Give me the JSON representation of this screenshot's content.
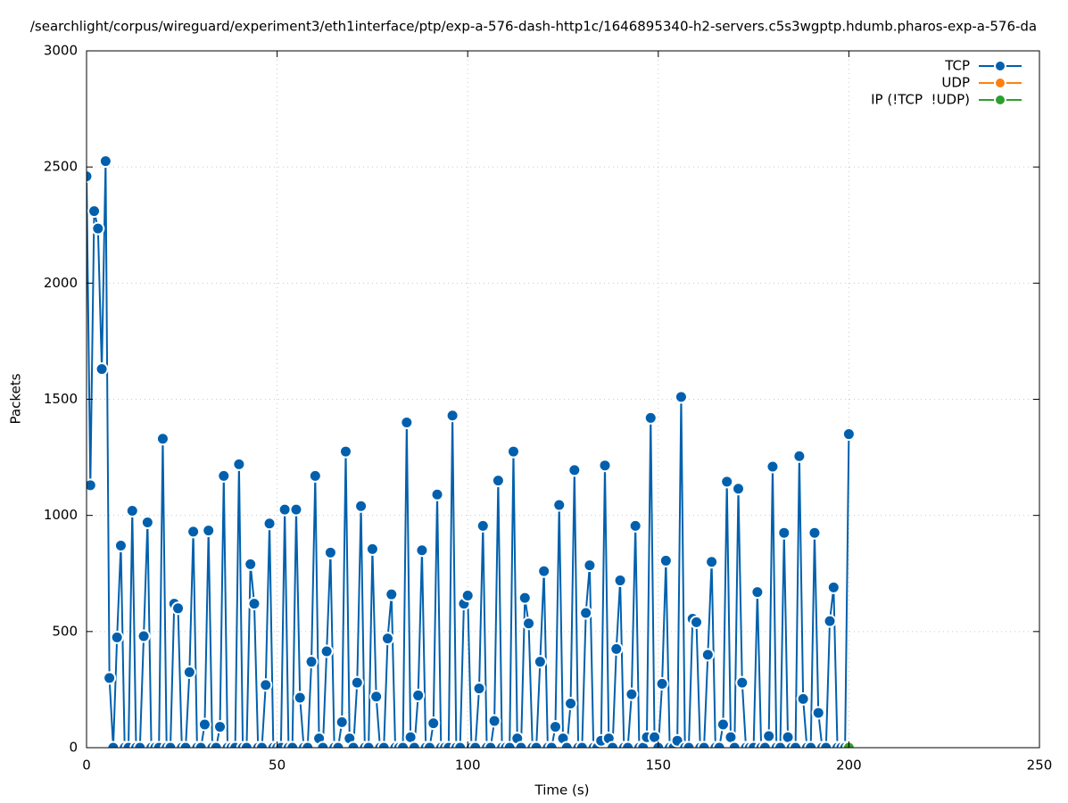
{
  "chart_data": {
    "type": "line",
    "title": "/searchlight/corpus/wireguard/experiment3/eth1interface/ptp/exp-a-576-dash-http1c/1646895340-h2-servers.c5s3wgptp.hdumb.pharos-exp-a-576-da",
    "x_label": "Time (s)",
    "y_label": "Packets",
    "xlim": [
      0,
      250
    ],
    "xticks": [
      0,
      50,
      100,
      150,
      200,
      250
    ],
    "ylim": [
      0,
      3000
    ],
    "yticks": [
      0,
      500,
      1000,
      1500,
      2000,
      2500,
      3000
    ],
    "grid": true,
    "legend": "top-right",
    "series": [
      {
        "name": "TCP",
        "color": "#0060ad",
        "x": [
          0,
          1,
          2,
          3,
          4,
          5,
          6,
          7,
          8,
          9,
          10,
          11,
          12,
          13,
          14,
          15,
          16,
          17,
          18,
          19,
          20,
          21,
          22,
          23,
          24,
          25,
          26,
          27,
          28,
          29,
          30,
          31,
          32,
          33,
          34,
          35,
          36,
          37,
          38,
          39,
          40,
          41,
          42,
          43,
          44,
          45,
          46,
          47,
          48,
          49,
          50,
          51,
          52,
          53,
          54,
          55,
          56,
          57,
          58,
          59,
          60,
          61,
          62,
          63,
          64,
          65,
          66,
          67,
          68,
          69,
          70,
          71,
          72,
          73,
          74,
          75,
          76,
          77,
          78,
          79,
          80,
          81,
          82,
          83,
          84,
          85,
          86,
          87,
          88,
          89,
          90,
          91,
          92,
          93,
          94,
          95,
          96,
          97,
          98,
          99,
          100,
          101,
          102,
          103,
          104,
          105,
          106,
          107,
          108,
          109,
          110,
          111,
          112,
          113,
          114,
          115,
          116,
          117,
          118,
          119,
          120,
          121,
          122,
          123,
          124,
          125,
          126,
          127,
          128,
          129,
          130,
          131,
          132,
          133,
          134,
          135,
          136,
          137,
          138,
          139,
          140,
          141,
          142,
          143,
          144,
          145,
          146,
          147,
          148,
          149,
          150,
          151,
          152,
          153,
          154,
          155,
          156,
          157,
          158,
          159,
          160,
          161,
          162,
          163,
          164,
          165,
          166,
          167,
          168,
          169,
          170,
          171,
          172,
          173,
          174,
          175,
          176,
          177,
          178,
          179,
          180,
          181,
          182,
          183,
          184,
          185,
          186,
          187,
          188,
          189,
          190,
          191,
          192,
          193,
          194,
          195,
          196,
          197,
          198,
          199,
          200
        ],
        "values": [
          2460,
          1130,
          2310,
          2235,
          1630,
          2525,
          300,
          0,
          475,
          870,
          0,
          0,
          1020,
          0,
          0,
          480,
          970,
          0,
          0,
          0,
          1330,
          0,
          0,
          620,
          600,
          0,
          0,
          325,
          930,
          0,
          0,
          100,
          935,
          0,
          0,
          90,
          1170,
          0,
          0,
          0,
          1220,
          0,
          0,
          790,
          620,
          0,
          0,
          270,
          965,
          0,
          0,
          0,
          1025,
          0,
          0,
          1025,
          215,
          0,
          0,
          370,
          1170,
          40,
          0,
          415,
          840,
          0,
          0,
          110,
          1275,
          40,
          0,
          280,
          1040,
          0,
          0,
          855,
          220,
          0,
          0,
          470,
          660,
          0,
          0,
          0,
          1400,
          45,
          0,
          225,
          850,
          0,
          0,
          105,
          1090,
          0,
          0,
          0,
          1430,
          0,
          0,
          620,
          655,
          0,
          0,
          255,
          955,
          0,
          0,
          115,
          1150,
          0,
          0,
          0,
          1275,
          40,
          0,
          645,
          535,
          0,
          0,
          370,
          760,
          0,
          0,
          90,
          1045,
          40,
          0,
          190,
          1195,
          0,
          0,
          580,
          785,
          0,
          0,
          30,
          1215,
          40,
          0,
          425,
          720,
          0,
          0,
          230,
          955,
          0,
          0,
          45,
          1420,
          45,
          0,
          275,
          805,
          0,
          0,
          30,
          1510,
          0,
          0,
          555,
          540,
          0,
          0,
          400,
          800,
          0,
          0,
          100,
          1145,
          45,
          0,
          1115,
          280,
          0,
          0,
          0,
          670,
          0,
          0,
          50,
          1210,
          0,
          0,
          925,
          45,
          0,
          0,
          1255,
          210,
          0,
          0,
          925,
          150,
          0,
          0,
          545,
          690,
          0,
          0,
          0,
          1350
        ]
      },
      {
        "name": "UDP",
        "color": "#ff7f0e",
        "x": [],
        "values": []
      },
      {
        "name": "IP (!TCP  !UDP)",
        "color": "#2ca02c",
        "x": [
          200
        ],
        "values": [
          0
        ]
      }
    ]
  }
}
